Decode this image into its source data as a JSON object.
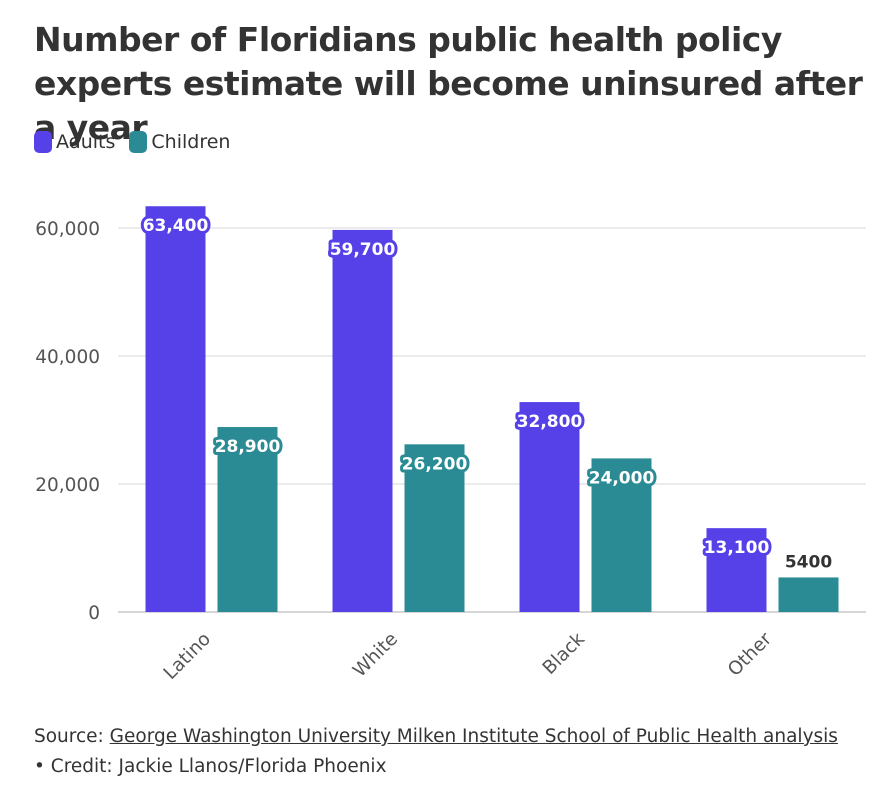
{
  "title": "Number of Floridians public health policy experts estimate will become uninsured after a year",
  "legend": [
    {
      "label": "Adults",
      "color": "#5640e8"
    },
    {
      "label": "Children",
      "color": "#2a8b95"
    }
  ],
  "footer": {
    "source_prefix": "Source: ",
    "source_link": "George Washington University Milken Institute School of Public Health analysis",
    "separator": " • ",
    "credit": "Credit: Jackie Llanos/Florida Phoenix"
  },
  "chart_data": {
    "type": "bar",
    "title": "Number of Floridians public health policy experts estimate will become uninsured after a year",
    "xlabel": "",
    "ylabel": "",
    "categories": [
      "Latino",
      "White",
      "Black",
      "Other"
    ],
    "series": [
      {
        "name": "Adults",
        "color": "#5640e8",
        "values": [
          63400,
          59700,
          32800,
          13100
        ],
        "labels": [
          "63,400",
          "59,700",
          "32,800",
          "13,100"
        ]
      },
      {
        "name": "Children",
        "color": "#2a8b95",
        "values": [
          28900,
          26200,
          24000,
          5400
        ],
        "labels": [
          "28,900",
          "26,200",
          "24,000",
          "5400"
        ]
      }
    ],
    "ylim": [
      0,
      65000
    ],
    "yticks": [
      0,
      20000,
      40000,
      60000
    ],
    "ytick_labels": [
      "0",
      "20,000",
      "40,000",
      "60,000"
    ],
    "grid": true,
    "legend_position": "top-left"
  }
}
